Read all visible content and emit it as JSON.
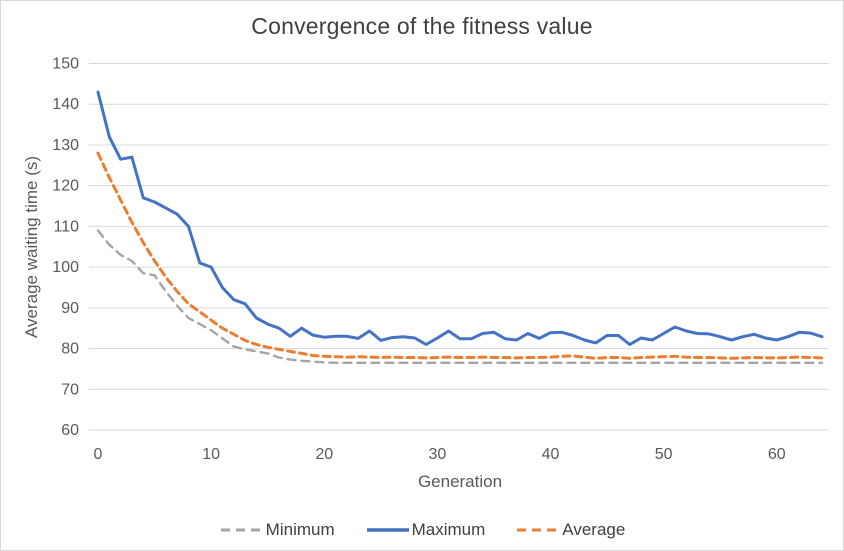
{
  "chart_data": {
    "type": "line",
    "title": "Convergence of the fitness value",
    "xlabel": "Generation",
    "ylabel": "Average waiting time (s)",
    "xlim": [
      0,
      64
    ],
    "ylim": [
      60,
      150
    ],
    "grid": "horizontal",
    "legend_position": "bottom",
    "xticks": [
      0,
      10,
      20,
      30,
      40,
      50,
      60
    ],
    "yticks": [
      60,
      70,
      80,
      90,
      100,
      110,
      120,
      130,
      140,
      150
    ],
    "x_step": 1,
    "colors": {
      "minimum": "#a5a5a5",
      "maximum": "#4472c4",
      "average": "#ed7d31",
      "gridline": "#d9d9d9",
      "axis_text": "#595959",
      "title_text": "#404040"
    },
    "series": [
      {
        "name": "Minimum",
        "style": "dashed",
        "color": "#a5a5a5",
        "values": [
          109,
          105.5,
          103,
          101.5,
          98.5,
          98,
          94,
          90.5,
          87.5,
          86,
          84.5,
          82.5,
          80.5,
          79.8,
          79.3,
          78.8,
          77.8,
          77.3,
          77,
          76.8,
          76.6,
          76.5,
          76.5,
          76.5,
          76.5,
          76.5,
          76.5,
          76.5,
          76.5,
          76.5,
          76.5,
          76.5,
          76.5,
          76.5,
          76.5,
          76.5,
          76.5,
          76.5,
          76.5,
          76.5,
          76.5,
          76.5,
          76.5,
          76.5,
          76.5,
          76.5,
          76.5,
          76.5,
          76.5,
          76.5,
          76.5,
          76.5,
          76.5,
          76.5,
          76.5,
          76.5,
          76.5,
          76.5,
          76.5,
          76.5,
          76.5,
          76.5,
          76.5,
          76.5,
          76.5
        ]
      },
      {
        "name": "Maximum",
        "style": "solid",
        "color": "#4472c4",
        "values": [
          143,
          132,
          126.5,
          127,
          117,
          116,
          114.5,
          113,
          110,
          101,
          100,
          95,
          92,
          91,
          87.5,
          86,
          85,
          83,
          85,
          83.3,
          82.8,
          83,
          83,
          82.5,
          84.3,
          82,
          82.7,
          82.9,
          82.6,
          81,
          82.6,
          84.3,
          82.4,
          82.4,
          83.7,
          84,
          82.4,
          82.1,
          83.7,
          82.5,
          83.9,
          84,
          83.2,
          82.1,
          81.4,
          83.2,
          83.2,
          81,
          82.6,
          82.1,
          83.7,
          85.3,
          84.3,
          83.7,
          83.6,
          82.9,
          82.1,
          82.9,
          83.5,
          82.6,
          82.1,
          82.9,
          84,
          83.8,
          82.9
        ]
      },
      {
        "name": "Average",
        "style": "dashed",
        "color": "#ed7d31",
        "values": [
          128,
          122,
          116.5,
          111,
          106,
          101.5,
          97.5,
          94,
          91,
          89,
          87,
          85,
          83.5,
          82,
          81,
          80.3,
          79.8,
          79.3,
          78.8,
          78.3,
          78.1,
          78,
          77.9,
          78,
          77.9,
          77.8,
          77.9,
          77.8,
          77.8,
          77.7,
          77.8,
          77.9,
          77.8,
          77.8,
          77.9,
          77.8,
          77.8,
          77.7,
          77.8,
          77.8,
          77.9,
          78.1,
          78.2,
          77.9,
          77.6,
          77.8,
          77.8,
          77.6,
          77.8,
          77.9,
          78,
          78.1,
          77.9,
          77.8,
          77.8,
          77.7,
          77.6,
          77.7,
          77.8,
          77.7,
          77.7,
          77.8,
          77.9,
          77.8,
          77.7
        ]
      }
    ]
  }
}
